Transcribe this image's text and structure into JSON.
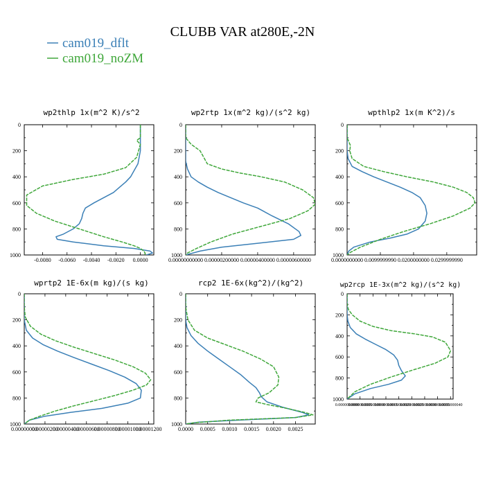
{
  "chart_data": {
    "type": "line",
    "title": "CLUBB VAR at280E,-2N",
    "legend": {
      "placement": "top-left",
      "entries": [
        {
          "name": "cam019_dflt",
          "color": "#3a7fb6"
        },
        {
          "name": "cam019_noZM",
          "color": "#3fa73a"
        }
      ]
    },
    "panels": [
      {
        "id": "wp2thlp",
        "title": "wp2thlp  1x(m^2 K)/s^2",
        "xlim": [
          -0.0095,
          0.0011
        ],
        "ylim": [
          0,
          1000
        ],
        "x_ticks": [
          -0.008,
          -0.006,
          -0.004,
          -0.002,
          0.0
        ],
        "x_tick_labels": [
          "-0.0080",
          "-0.0060",
          "-0.0040",
          "-0.0020",
          "0.0000"
        ],
        "y_ticks": [
          0,
          200,
          400,
          600,
          800,
          1000
        ],
        "y_tick_labels": [
          "0",
          "200",
          "400",
          "600",
          "800",
          "1000"
        ],
        "series": [
          {
            "name": "cam019_dflt",
            "x": [
              0.0,
              0.0,
              0.0,
              -0.0002,
              -0.0005,
              -0.0008,
              -0.0012,
              -0.0017,
              -0.0022,
              -0.003,
              -0.0038,
              -0.0045,
              -0.0047,
              -0.0048,
              -0.005,
              -0.0055,
              -0.0063,
              -0.0069,
              -0.0068,
              -0.0055,
              -0.003,
              -0.0005,
              0.0008,
              0.001,
              0.0005
            ],
            "y": [
              0,
              100,
              200,
              300,
              350,
              400,
              440,
              480,
              520,
              560,
              600,
              640,
              680,
              720,
              760,
              800,
              840,
              860,
              880,
              900,
              930,
              950,
              970,
              985,
              1000
            ]
          },
          {
            "name": "cam019_noZM",
            "x": [
              0.0,
              0.0,
              -0.0003,
              0.0,
              -0.0003,
              -0.0012,
              -0.003,
              -0.0055,
              -0.008,
              -0.0093,
              -0.0093,
              -0.0085,
              -0.007,
              -0.005,
              -0.003,
              -0.0015,
              -0.0005,
              0.0,
              0.0003,
              0.0004,
              0.0003
            ],
            "y": [
              0,
              100,
              120,
              150,
              250,
              330,
              380,
              420,
              470,
              540,
              620,
              680,
              740,
              800,
              860,
              900,
              930,
              950,
              970,
              990,
              1000
            ]
          }
        ]
      },
      {
        "id": "wp2rtp",
        "title": "wp2rtp  1x(m^2 kg)/(s^2 kg)",
        "xlim": [
          0.0,
          7.2e-06
        ],
        "ylim": [
          0,
          1000
        ],
        "x_ticks": [
          0.0,
          2e-06,
          4e-06,
          6e-06
        ],
        "x_tick_labels": [
          "0.00000000000",
          "0.00000200000",
          "0.00000400000",
          "0.00000600000"
        ],
        "y_ticks": [
          0,
          200,
          400,
          600,
          800,
          1000
        ],
        "y_tick_labels": [
          "0",
          "200",
          "400",
          "600",
          "800",
          "1000"
        ],
        "series": [
          {
            "name": "cam019_dflt",
            "x": [
              0.0,
              0.0,
              0.0,
              0.0,
              1e-07,
              3e-07,
              7e-07,
              1.2e-06,
              1.8e-06,
              2.5e-06,
              3.2e-06,
              4e-06,
              4.8e-06,
              5.7e-06,
              6.3e-06,
              6.4e-06,
              6e-06,
              4e-06,
              2e-06,
              8e-07,
              0.0
            ],
            "y": [
              0,
              100,
              200,
              280,
              340,
              400,
              440,
              480,
              520,
              560,
              600,
              640,
              700,
              760,
              820,
              850,
              880,
              910,
              940,
              970,
              1000
            ]
          },
          {
            "name": "cam019_noZM",
            "x": [
              0.0,
              0.0,
              3e-07,
              8e-07,
              1e-06,
              1.2e-06,
              2e-06,
              3e-06,
              4.2e-06,
              5.5e-06,
              6.5e-06,
              7.1e-06,
              7.2e-06,
              6.8e-06,
              5.8e-06,
              4.2e-06,
              2.6e-06,
              1.4e-06,
              6e-07,
              1e-07,
              0.0
            ],
            "y": [
              0,
              100,
              150,
              200,
              250,
              300,
              340,
              370,
              400,
              440,
              500,
              560,
              610,
              660,
              720,
              780,
              840,
              900,
              950,
              985,
              1000
            ]
          }
        ]
      },
      {
        "id": "wpthlp2",
        "title": "wpthlp2  1x(m K^2)/s",
        "xlim": [
          0.0,
          0.039
        ],
        "ylim": [
          0,
          1000
        ],
        "x_ticks": [
          0.0,
          0.01,
          0.02,
          0.03
        ],
        "x_tick_labels": [
          "0.0000000000",
          "0.0099999990",
          "0.0200000000",
          "0.0299999990"
        ],
        "y_ticks": [
          0,
          200,
          400,
          600,
          800,
          1000
        ],
        "y_tick_labels": [
          "0",
          "200",
          "400",
          "600",
          "800",
          "1000"
        ],
        "series": [
          {
            "name": "cam019_dflt",
            "x": [
              0.0,
              0.0,
              0.0,
              0.0003,
              0.0015,
              0.0045,
              0.008,
              0.012,
              0.016,
              0.0195,
              0.022,
              0.0235,
              0.024,
              0.0235,
              0.0215,
              0.018,
              0.013,
              0.007,
              0.002,
              0.0005,
              0.0
            ],
            "y": [
              0,
              100,
              200,
              260,
              320,
              360,
              400,
              440,
              480,
              520,
              560,
              620,
              680,
              740,
              800,
              840,
              870,
              900,
              940,
              970,
              1000
            ]
          },
          {
            "name": "cam019_noZM",
            "x": [
              0.0,
              0.0,
              0.0005,
              0.001,
              0.0008,
              0.0015,
              0.005,
              0.011,
              0.018,
              0.026,
              0.032,
              0.036,
              0.038,
              0.0385,
              0.037,
              0.032,
              0.025,
              0.017,
              0.01,
              0.004,
              0.001,
              0.0
            ],
            "y": [
              0,
              100,
              130,
              160,
              200,
              260,
              320,
              360,
              400,
              440,
              480,
              520,
              560,
              600,
              640,
              700,
              760,
              820,
              880,
              940,
              980,
              1000
            ]
          }
        ]
      },
      {
        "id": "wprtp2",
        "title": "wprtp2  1E-6x(m kg)/(s kg)",
        "xlim": [
          0.0,
          1.25e-05
        ],
        "ylim": [
          0,
          1000
        ],
        "x_ticks": [
          0.0,
          2e-06,
          4e-06,
          6e-06,
          8e-06,
          1e-05,
          1.2e-05
        ],
        "x_tick_labels": [
          "0.00000000",
          "0.00000200",
          "0.00000400",
          "0.00000600",
          "0.00000800",
          "0.00001000",
          "0.00001200"
        ],
        "y_ticks": [
          0,
          200,
          400,
          600,
          800,
          1000
        ],
        "y_tick_labels": [
          "0",
          "200",
          "400",
          "600",
          "800",
          "1000"
        ],
        "series": [
          {
            "name": "cam019_dflt",
            "x": [
              0.0,
              0.0,
              0.0,
              2e-07,
              8e-07,
              1.8e-06,
              3.2e-06,
              4.8e-06,
              6.5e-06,
              8.2e-06,
              9.7e-06,
              1.08e-05,
              1.13e-05,
              1.12e-05,
              1e-05,
              7.5e-06,
              4.5e-06,
              2e-06,
              5e-07,
              0.0
            ],
            "y": [
              0,
              100,
              200,
              280,
              340,
              390,
              440,
              490,
              540,
              590,
              640,
              690,
              740,
              800,
              840,
              880,
              910,
              940,
              970,
              1000
            ]
          },
          {
            "name": "cam019_noZM",
            "x": [
              0.0,
              0.0,
              1e-07,
              6e-07,
              1.6e-06,
              3e-06,
              4.8e-06,
              6.8e-06,
              8.8e-06,
              1.05e-05,
              1.17e-05,
              1.22e-05,
              1.18e-05,
              1.05e-05,
              8.8e-06,
              6.8e-06,
              4.8e-06,
              3e-06,
              1.5e-06,
              5e-07,
              0.0
            ],
            "y": [
              0,
              100,
              180,
              250,
              310,
              360,
              410,
              460,
              510,
              560,
              610,
              660,
              700,
              740,
              780,
              820,
              860,
              900,
              940,
              970,
              1000
            ]
          }
        ]
      },
      {
        "id": "rcp2",
        "title": "rcp2  1E-6x(kg^2)/(kg^2)",
        "xlim": [
          0.0,
          0.00295
        ],
        "ylim": [
          0,
          1000
        ],
        "x_ticks": [
          0.0,
          0.0005,
          0.001,
          0.0015,
          0.002,
          0.0025
        ],
        "x_tick_labels": [
          "0.0000",
          "0.0005",
          "0.0010",
          "0.0015",
          "0.0020",
          "0.0025"
        ],
        "y_ticks": [
          0,
          200,
          400,
          600,
          800,
          1000
        ],
        "y_tick_labels": [
          "0",
          "200",
          "400",
          "600",
          "800",
          "1000"
        ],
        "series": [
          {
            "name": "cam019_dflt",
            "x": [
              0.0,
              0.0,
              0.0,
              3e-05,
              0.00012,
              0.00028,
              0.0005,
              0.00075,
              0.001,
              0.00125,
              0.00145,
              0.0016,
              0.00168,
              0.00172,
              0.00185,
              0.0022,
              0.00265,
              0.0028,
              0.0025,
              0.0012,
              0.0003,
              0.0
            ],
            "y": [
              0,
              100,
              200,
              260,
              320,
              380,
              440,
              500,
              560,
              620,
              680,
              720,
              760,
              790,
              830,
              870,
              910,
              930,
              950,
              970,
              985,
              1000
            ]
          },
          {
            "name": "cam019_noZM",
            "x": [
              0.0,
              0.0,
              5e-05,
              0.0002,
              0.0005,
              0.0009,
              0.0013,
              0.0017,
              0.002,
              0.00212,
              0.0021,
              0.0019,
              0.00165,
              0.0016,
              0.00185,
              0.0023,
              0.0027,
              0.0029,
              0.0025,
              0.001,
              0.0002,
              0.0
            ],
            "y": [
              0,
              100,
              200,
              280,
              340,
              390,
              440,
              500,
              560,
              640,
              700,
              760,
              800,
              830,
              850,
              880,
              910,
              930,
              950,
              970,
              990,
              1000
            ]
          }
        ]
      },
      {
        "id": "wp2rcp",
        "title": "wp2rcp  1E-3x(m^2 kg)/(s^2 kg)",
        "xlim": [
          0.0,
          4.1e-09
        ],
        "ylim": [
          0,
          1000
        ],
        "x_ticks": [
          0.0,
          5e-10,
          1e-09,
          1.5e-09,
          2e-09,
          2.5e-09,
          3e-09,
          3.5e-09,
          4e-09
        ],
        "x_tick_labels": [
          "0.0000000000",
          "0.0000000005",
          "0.0000000010",
          "0.0000000015",
          "0.0000000020",
          "0.0000000025",
          "0.0000000030",
          "0.0000000035",
          "0.0000000040"
        ],
        "y_ticks": [
          0,
          200,
          400,
          600,
          800,
          1000
        ],
        "y_tick_labels": [
          "0",
          "200",
          "400",
          "600",
          "800",
          "1000"
        ],
        "series": [
          {
            "name": "cam019_dflt",
            "x": [
              0.0,
              0.0,
              0.0,
              3e-11,
              1.2e-10,
              3.5e-10,
              7e-10,
              1.1e-09,
              1.5e-09,
              1.8e-09,
              1.95e-09,
              2e-09,
              2.1e-09,
              2.25e-09,
              2.1e-09,
              1.6e-09,
              9e-10,
              3e-10,
              0.0
            ],
            "y": [
              0,
              100,
              200,
              260,
              320,
              380,
              430,
              480,
              530,
              580,
              630,
              680,
              730,
              780,
              820,
              860,
              900,
              950,
              1000
            ]
          },
          {
            "name": "cam019_noZM",
            "x": [
              0.0,
              0.0,
              5e-11,
              2e-10,
              5e-10,
              1e-09,
              1.7e-09,
              2.6e-09,
              3.3e-09,
              3.8e-09,
              4e-09,
              3.9e-09,
              3.4e-09,
              2.6e-09,
              1.7e-09,
              9e-10,
              3e-10,
              0.0
            ],
            "y": [
              0,
              100,
              150,
              200,
              260,
              310,
              350,
              380,
              410,
              460,
              540,
              600,
              660,
              720,
              790,
              860,
              930,
              1000
            ]
          }
        ]
      }
    ]
  }
}
